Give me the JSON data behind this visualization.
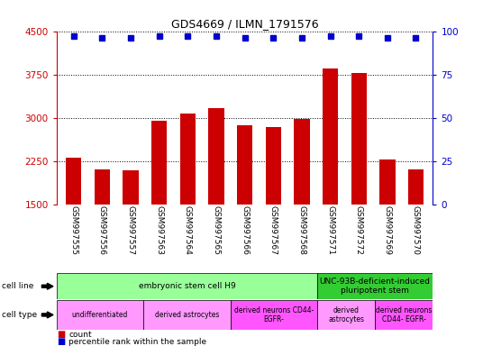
{
  "title": "GDS4669 / ILMN_1791576",
  "samples": [
    "GSM997555",
    "GSM997556",
    "GSM997557",
    "GSM997563",
    "GSM997564",
    "GSM997565",
    "GSM997566",
    "GSM997567",
    "GSM997568",
    "GSM997571",
    "GSM997572",
    "GSM997569",
    "GSM997570"
  ],
  "counts": [
    2300,
    2100,
    2080,
    2950,
    3070,
    3170,
    2870,
    2840,
    2970,
    3860,
    3770,
    2280,
    2100
  ],
  "percentiles": [
    97,
    96,
    96,
    97,
    97,
    97,
    96,
    96,
    96,
    97,
    97,
    96,
    96
  ],
  "ylim_left": [
    1500,
    4500
  ],
  "ylim_right": [
    0,
    100
  ],
  "yticks_left": [
    1500,
    2250,
    3000,
    3750,
    4500
  ],
  "yticks_right": [
    0,
    25,
    50,
    75,
    100
  ],
  "bar_color": "#cc0000",
  "dot_color": "#0000cc",
  "tick_color_left": "#cc0000",
  "tick_color_right": "#0000cc",
  "xtick_bg": "#cccccc",
  "cell_line_groups": [
    {
      "label": "embryonic stem cell H9",
      "start": 0,
      "end": 9,
      "color": "#99ff99"
    },
    {
      "label": "UNC-93B-deficient-induced\npluripotent stem",
      "start": 9,
      "end": 13,
      "color": "#33cc33"
    }
  ],
  "cell_type_groups": [
    {
      "label": "undifferentiated",
      "start": 0,
      "end": 3,
      "color": "#ff99ff"
    },
    {
      "label": "derived astrocytes",
      "start": 3,
      "end": 6,
      "color": "#ff99ff"
    },
    {
      "label": "derived neurons CD44-\nEGFR-",
      "start": 6,
      "end": 9,
      "color": "#ff55ff"
    },
    {
      "label": "derived\nastrocytes",
      "start": 9,
      "end": 11,
      "color": "#ff99ff"
    },
    {
      "label": "derived neurons\nCD44- EGFR-",
      "start": 11,
      "end": 13,
      "color": "#ff55ff"
    }
  ],
  "bg_color": "#ffffff"
}
